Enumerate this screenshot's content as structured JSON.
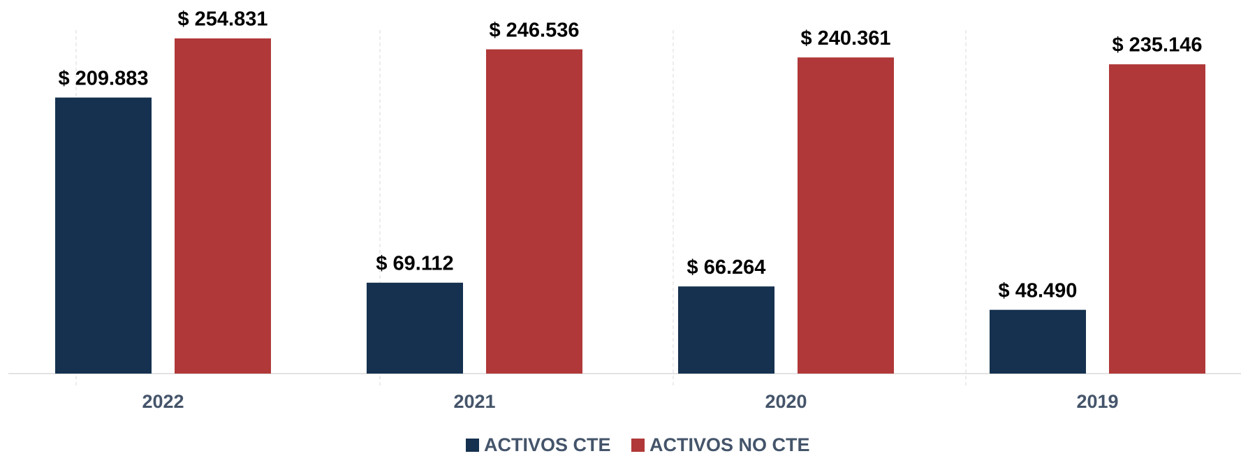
{
  "chart_data": {
    "type": "bar",
    "categories": [
      "2022",
      "2021",
      "2020",
      "2019"
    ],
    "series": [
      {
        "name": "ACTIVOS CTE",
        "color": "#15314f",
        "values": [
          209883,
          69112,
          66264,
          48490
        ],
        "value_labels": [
          "$ 209.883",
          "$ 69.112",
          "$ 66.264",
          "$ 48.490"
        ]
      },
      {
        "name": "ACTIVOS NO CTE",
        "color": "#b03838",
        "values": [
          254831,
          246536,
          240361,
          235146
        ],
        "value_labels": [
          "$ 254.831",
          "$ 246.536",
          "$ 240.361",
          "$ 235.146"
        ]
      }
    ],
    "legend": "bottom"
  }
}
